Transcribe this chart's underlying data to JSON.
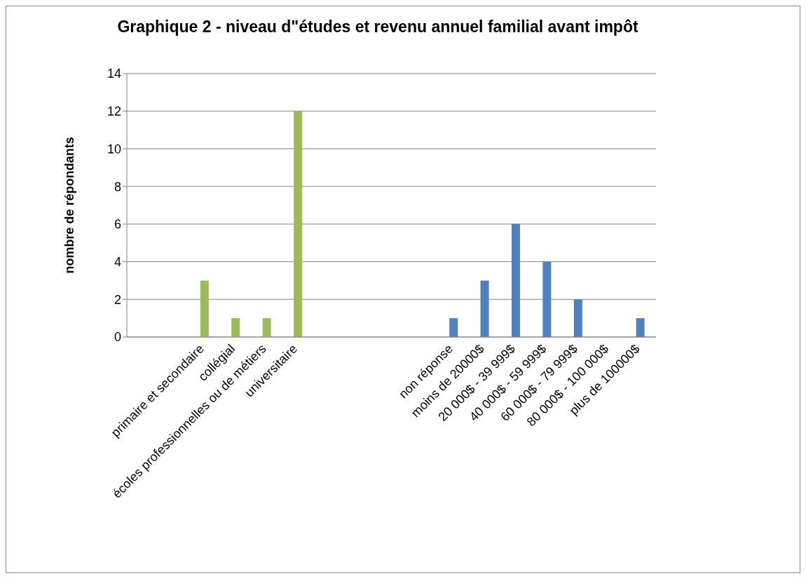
{
  "chart_data": {
    "type": "bar",
    "title": "Graphique 2 - niveau d\"études et revenu annuel familial avant impôt",
    "ylabel": "nombre de répondants",
    "categories": [
      null,
      null,
      "primaire et secondaire",
      "collégial",
      "écoles professionnelles ou de métiers",
      "universitaire",
      null,
      null,
      null,
      null,
      "non réponse",
      "moins de 20000$",
      "20 000$ - 39 999$",
      "40 000$ - 59 999$",
      "60 000$ - 79 999$",
      "80 000$ - 100 000$",
      "plus de 100000$"
    ],
    "values": [
      null,
      null,
      3,
      1,
      1,
      12,
      null,
      null,
      null,
      null,
      1,
      3,
      6,
      4,
      2,
      0,
      1
    ],
    "colors": [
      "#9bbb59",
      "#9bbb59",
      "#9bbb59",
      "#9bbb59",
      "#9bbb59",
      "#9bbb59",
      "#4f81bd",
      "#4f81bd",
      "#4f81bd",
      "#4f81bd",
      "#4f81bd",
      "#4f81bd",
      "#4f81bd",
      "#4f81bd",
      "#4f81bd",
      "#4f81bd",
      "#4f81bd"
    ],
    "ylim": [
      0,
      14
    ],
    "yticks": [
      0,
      2,
      4,
      6,
      8,
      10,
      12,
      14
    ],
    "grid": "y",
    "legend": false
  }
}
